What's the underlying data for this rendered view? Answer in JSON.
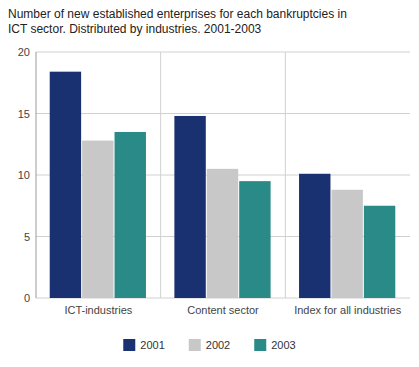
{
  "chart_data": {
    "type": "bar",
    "title": "Number of new established enterprises for each bankruptcies in\nICT sector. Distributed by industries. 2001-2003",
    "categories": [
      "ICT-industries",
      "Content sector",
      "Index for all industries"
    ],
    "series": [
      {
        "name": "2001",
        "color": "#1a3171",
        "values": [
          18.4,
          14.8,
          10.1
        ]
      },
      {
        "name": "2002",
        "color": "#c8c8c8",
        "values": [
          12.8,
          10.5,
          8.8
        ]
      },
      {
        "name": "2003",
        "color": "#2a8a88",
        "values": [
          13.5,
          9.5,
          7.5
        ]
      }
    ],
    "ylim": [
      0,
      20
    ],
    "yticks": [
      0,
      5,
      10,
      15,
      20
    ],
    "grid": true,
    "legend": "bottom"
  }
}
